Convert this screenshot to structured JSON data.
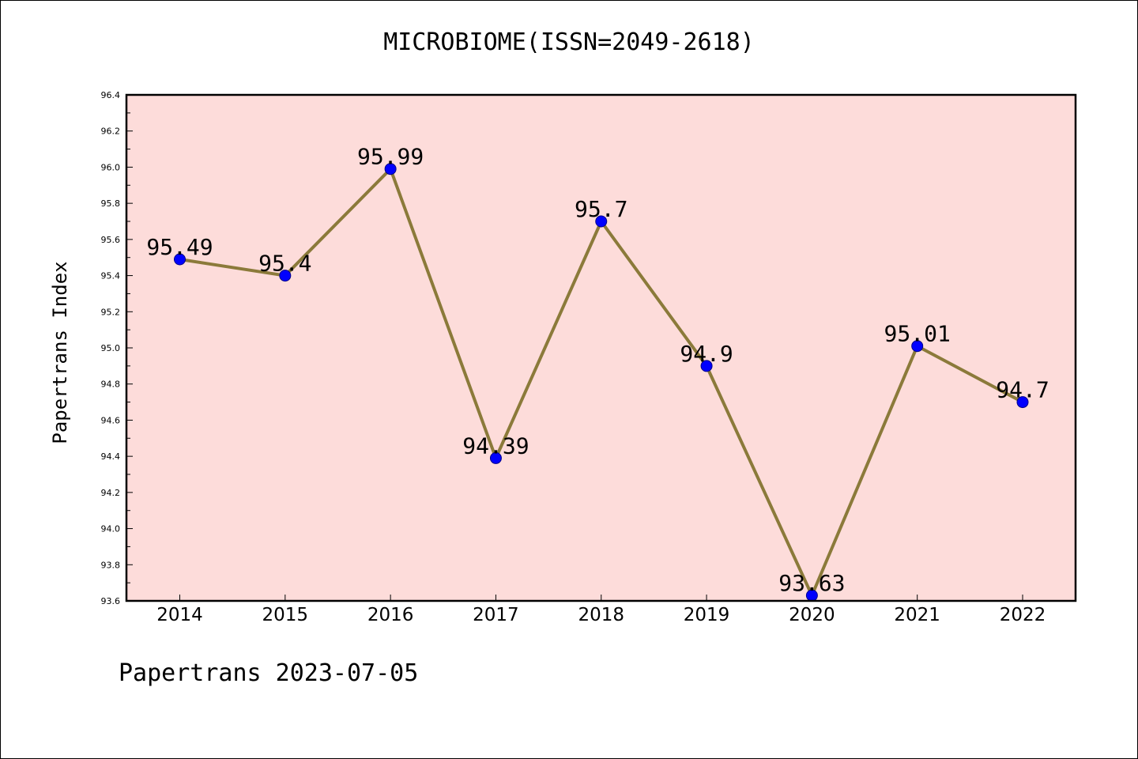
{
  "chart_data": {
    "type": "line",
    "title": "MICROBIOME(ISSN=2049-2618)",
    "xlabel": "",
    "ylabel": "Papertrans Index",
    "categories": [
      "2014",
      "2015",
      "2016",
      "2017",
      "2018",
      "2019",
      "2020",
      "2021",
      "2022"
    ],
    "series": [
      {
        "values": [
          95.49,
          95.4,
          95.99,
          94.39,
          95.7,
          94.9,
          93.63,
          95.01,
          94.7
        ],
        "labels": [
          "95.49",
          "95.4",
          "95.99",
          "94.39",
          "95.7",
          "94.9",
          "93.63",
          "95.01",
          "94.7"
        ],
        "line_color": "#8B7A3A",
        "marker_color": "#0000FF"
      }
    ],
    "ylim": [
      93.6,
      96.4
    ],
    "yticks": [
      "93.6",
      "93.8",
      "94.0",
      "94.2",
      "94.4",
      "94.6",
      "94.8",
      "95.0",
      "95.2",
      "95.4",
      "95.6",
      "95.8",
      "96.0",
      "96.2",
      "96.4"
    ],
    "plot_background": "#FDDCDA",
    "grid": false,
    "legend": "none"
  },
  "footer": "Papertrans 2023-07-05"
}
